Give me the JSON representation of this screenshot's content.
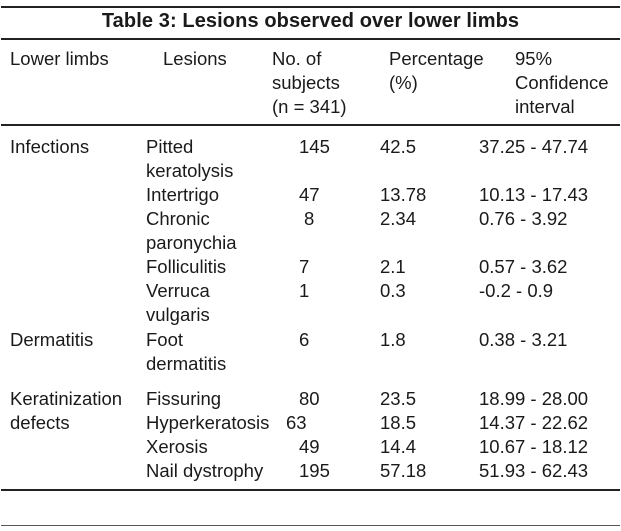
{
  "title": "Table 3: Lesions observed over lower limbs",
  "headers": {
    "lower_limbs": "Lower limbs",
    "lesions": "Lesions",
    "subjects_l1": "No. of",
    "subjects_l2": "subjects",
    "subjects_l3": "(n = 341)",
    "pct_l1": "Percentage",
    "pct_l2": "(%)",
    "ci_l1": "95%",
    "ci_l2": "Confidence",
    "ci_l3": "interval"
  },
  "groups": [
    {
      "category_lines": [
        "Infections"
      ],
      "rows": [
        {
          "lesion_lines": [
            "Pitted",
            "keratolysis"
          ],
          "n": "145",
          "pct": "42.5",
          "ci": "37.25 - 47.74"
        },
        {
          "lesion_lines": [
            "Intertrigo"
          ],
          "n": "47",
          "pct": "13.78",
          "ci": "10.13 - 17.43"
        },
        {
          "lesion_lines": [
            "Chronic",
            "paronychia"
          ],
          "n": "8",
          "pct": "2.34",
          "ci": "0.76 - 3.92"
        },
        {
          "lesion_lines": [
            "Folliculitis"
          ],
          "n": "7",
          "pct": "2.1",
          "ci": "0.57 - 3.62"
        },
        {
          "lesion_lines": [
            "Verruca",
            "vulgaris"
          ],
          "n": "1",
          "pct": "0.3",
          "ci": "-0.2 - 0.9"
        }
      ]
    },
    {
      "category_lines": [
        "Dermatitis"
      ],
      "rows": [
        {
          "lesion_lines": [
            "Foot",
            "dermatitis"
          ],
          "n": "6",
          "pct": "1.8",
          "ci": "0.38 - 3.21"
        }
      ]
    },
    {
      "category_lines": [
        "Keratinization",
        "defects"
      ],
      "rows": [
        {
          "lesion_lines": [
            "Fissuring"
          ],
          "n": "80",
          "pct": "23.5",
          "ci": "18.99 - 28.00"
        },
        {
          "lesion_lines": [
            "Hyperkeratosis"
          ],
          "n": "63",
          "pct": "18.5",
          "ci": "14.37 - 22.62"
        },
        {
          "lesion_lines": [
            "Xerosis"
          ],
          "n": "49",
          "pct": "14.4",
          "ci": "10.67 - 18.12"
        },
        {
          "lesion_lines": [
            "Nail dystrophy"
          ],
          "n": "195",
          "pct": "57.18",
          "ci": "51.93 - 62.43"
        }
      ]
    }
  ]
}
